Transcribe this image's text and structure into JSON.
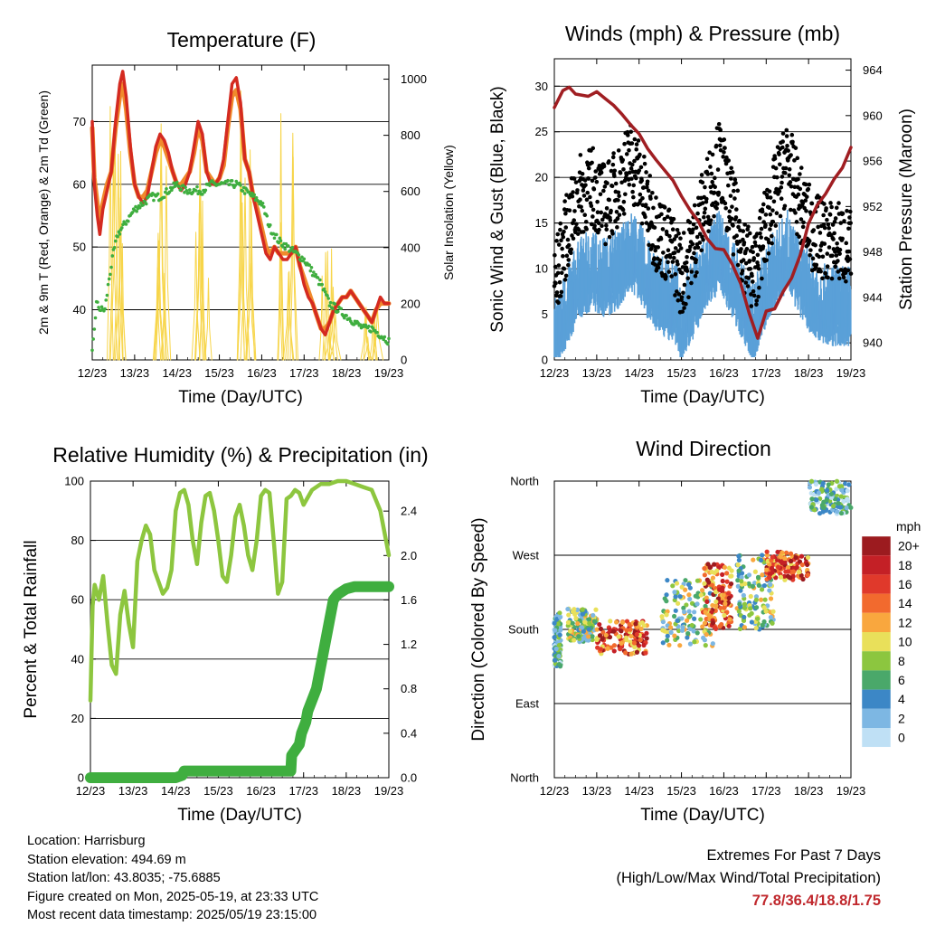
{
  "x_ticks": [
    "12/23",
    "13/23",
    "14/23",
    "15/23",
    "16/23",
    "17/23",
    "18/23",
    "19/23"
  ],
  "xlabel": "Time (Day/UTC)",
  "temperature": {
    "title": "Temperature (F)",
    "ylabel": "2m & 9m T (Red, Orange) & 2m Td (Green)",
    "y2label": "Solar Insolation (Yellow)",
    "yticks": [
      "40",
      "50",
      "60",
      "70"
    ],
    "y2ticks": [
      "0",
      "200",
      "400",
      "600",
      "800",
      "1000"
    ]
  },
  "winds": {
    "title": "Winds (mph) & Pressure (mb)",
    "ylabel": "Sonic Wind & Gust (Blue, Black)",
    "y2label": "Station Pressure (Maroon)",
    "yticks": [
      "0",
      "5",
      "10",
      "15",
      "20",
      "25",
      "30"
    ],
    "y2ticks": [
      "940",
      "944",
      "948",
      "952",
      "956",
      "960",
      "964"
    ]
  },
  "humidity": {
    "title": "Relative Humidity (%) & Precipitation (in)",
    "ylabel": "Percent & Total Rainfall",
    "yticks": [
      "0",
      "20",
      "40",
      "60",
      "80",
      "100"
    ],
    "y2ticks": [
      "0.0",
      "0.4",
      "0.8",
      "1.2",
      "1.6",
      "2.0",
      "2.4"
    ]
  },
  "direction": {
    "title": "Wind Direction",
    "ylabel": "Direction (Colored By Speed)",
    "yticks": [
      "North",
      "East",
      "South",
      "West",
      "North"
    ],
    "legend_title": "mph",
    "legend_labels": [
      "20+",
      "18",
      "16",
      "14",
      "12",
      "10",
      "8",
      "6",
      "4",
      "2",
      "0"
    ],
    "legend_colors": [
      "#9c1b1f",
      "#c42026",
      "#e0392b",
      "#f26a2e",
      "#f9a73e",
      "#e9e05a",
      "#8cc63f",
      "#4aa86a",
      "#3c87c6",
      "#7db7e3",
      "#bfe0f5"
    ]
  },
  "info": {
    "location": "Location: Harrisburg",
    "elevation": "Station elevation: 494.69 m",
    "latlon": "Station lat/lon: 43.8035; -75.6885",
    "created": "Figure created on Mon, 2025-05-19, at 23:33 UTC",
    "recent": "Most recent data timestamp: 2025/05/19 23:15:00"
  },
  "extremes": {
    "line1": "Extremes For Past 7 Days",
    "line2": "(High/Low/Max Wind/Total Precipitation)",
    "values": "77.8/36.4/18.8/1.75"
  },
  "chart_data": [
    {
      "type": "line",
      "x_days": [
        12,
        13,
        14,
        15,
        16,
        17,
        18,
        19
      ],
      "ylim": [
        32,
        79
      ],
      "y2lim": [
        0,
        1050
      ],
      "series": [
        {
          "color": "#d42a20",
          "x": [
            12.0,
            12.05,
            12.12,
            12.18,
            12.25,
            12.35,
            12.45,
            12.55,
            12.65,
            12.72,
            12.8,
            12.9,
            13.0,
            13.1,
            13.2,
            13.3,
            13.4,
            13.5,
            13.6,
            13.7,
            13.8,
            13.9,
            14.0,
            14.1,
            14.2,
            14.3,
            14.4,
            14.5,
            14.6,
            14.7,
            14.8,
            14.9,
            15.0,
            15.1,
            15.2,
            15.3,
            15.4,
            15.5,
            15.6,
            15.7,
            15.8,
            15.9,
            16.0,
            16.1,
            16.2,
            16.3,
            16.4,
            16.5,
            16.6,
            16.7,
            16.8,
            16.9,
            17.0,
            17.1,
            17.2,
            17.3,
            17.4,
            17.5,
            17.6,
            17.7,
            17.8,
            17.9,
            18.0,
            18.1,
            18.2,
            18.3,
            18.4,
            18.5,
            18.6,
            18.7,
            18.8,
            18.9,
            19.0
          ],
          "y": [
            70,
            60,
            55,
            52,
            56,
            59,
            62,
            70,
            76,
            78,
            74,
            66,
            60,
            58,
            57,
            58,
            62,
            66,
            68,
            67,
            65,
            62,
            60,
            59,
            60,
            62,
            66,
            70,
            68,
            62,
            60,
            60,
            61,
            64,
            70,
            76,
            77,
            73,
            64,
            62,
            58,
            55,
            52,
            49,
            48,
            50,
            49,
            48,
            48,
            49,
            50,
            47,
            44,
            42,
            41,
            39,
            37,
            36,
            38,
            40,
            41,
            42,
            42,
            43,
            42,
            41,
            40,
            39,
            38,
            40,
            42,
            41,
            41
          ]
        },
        {
          "color": "#f08a2c",
          "x": [
            12.0,
            12.05,
            12.12,
            12.18,
            12.25,
            12.35,
            12.45,
            12.55,
            12.65,
            12.72,
            12.8,
            12.9,
            13.0,
            13.1,
            13.2,
            13.3,
            13.4,
            13.5,
            13.6,
            13.7,
            13.8,
            13.9,
            14.0,
            14.1,
            14.2,
            14.3,
            14.4,
            14.5,
            14.6,
            14.7,
            14.8,
            14.9,
            15.0,
            15.1,
            15.2,
            15.3,
            15.4,
            15.5,
            15.6,
            15.7,
            15.8,
            15.9,
            16.0,
            16.1,
            16.2,
            16.3,
            16.4,
            16.5,
            16.6,
            16.7,
            16.8,
            16.9,
            17.0,
            17.1,
            17.2,
            17.3,
            17.4,
            17.5,
            17.6,
            17.7,
            17.8,
            17.9,
            18.0,
            18.1,
            18.2,
            18.3,
            18.4,
            18.5,
            18.6,
            18.7,
            18.8,
            18.9,
            19.0
          ],
          "y": [
            69,
            61,
            57,
            54,
            57,
            60,
            62,
            69,
            74,
            76,
            72,
            65,
            60,
            58,
            58,
            59,
            62,
            65,
            67,
            66,
            64,
            62,
            60,
            60,
            61,
            62,
            65,
            69,
            67,
            62,
            61,
            60,
            61,
            63,
            69,
            74,
            75,
            72,
            64,
            62,
            58,
            56,
            53,
            50,
            49,
            50,
            49,
            49,
            49,
            49,
            50,
            47,
            45,
            43,
            41,
            39,
            37,
            37,
            38,
            40,
            41,
            42,
            42,
            43,
            42,
            41,
            40,
            39,
            38,
            40,
            41,
            41,
            41
          ]
        },
        {
          "color": "#3fae3f",
          "x": [
            12.0,
            12.1,
            12.2,
            12.3,
            12.4,
            12.5,
            12.6,
            12.7,
            12.8,
            12.9,
            13.0,
            13.2,
            13.4,
            13.6,
            13.8,
            14.0,
            14.2,
            14.4,
            14.6,
            14.8,
            15.0,
            15.2,
            15.4,
            15.6,
            15.8,
            16.0,
            16.2,
            16.4,
            16.6,
            16.8,
            17.0,
            17.2,
            17.4,
            17.6,
            17.8,
            18.0,
            18.2,
            18.4,
            18.6,
            18.8,
            19.0
          ],
          "y": [
            33,
            41,
            40,
            40,
            45,
            49,
            52,
            53,
            54,
            55,
            56,
            57,
            58,
            58,
            59,
            60,
            59,
            59,
            59,
            60,
            60,
            60,
            60,
            59,
            58,
            57,
            53,
            51,
            50,
            49,
            48,
            46,
            44,
            41,
            40,
            39,
            38,
            37,
            37,
            36,
            35
          ]
        }
      ],
      "insolation_peaks": [
        {
          "x": 12.6,
          "y": 960
        },
        {
          "x": 13.6,
          "y": 900
        },
        {
          "x": 14.6,
          "y": 1000
        },
        {
          "x": 15.6,
          "y": 1030
        },
        {
          "x": 16.6,
          "y": 880
        },
        {
          "x": 17.6,
          "y": 420
        },
        {
          "x": 18.6,
          "y": 200
        }
      ]
    },
    {
      "type": "scatter",
      "ylim": [
        0,
        33
      ],
      "y2lim": [
        938.5,
        965
      ],
      "wind_mean_profile": [
        [
          12.0,
          3
        ],
        [
          12.3,
          7
        ],
        [
          12.6,
          10
        ],
        [
          12.9,
          11
        ],
        [
          13.2,
          10
        ],
        [
          13.5,
          11
        ],
        [
          13.8,
          13
        ],
        [
          14.0,
          12
        ],
        [
          14.3,
          9
        ],
        [
          14.6,
          8
        ],
        [
          14.9,
          7
        ],
        [
          15.0,
          5
        ],
        [
          15.3,
          8
        ],
        [
          15.6,
          11
        ],
        [
          15.9,
          13
        ],
        [
          16.1,
          11
        ],
        [
          16.4,
          8
        ],
        [
          16.7,
          5
        ],
        [
          16.9,
          8
        ],
        [
          17.2,
          11
        ],
        [
          17.5,
          13
        ],
        [
          17.8,
          10
        ],
        [
          18.1,
          8
        ],
        [
          18.4,
          7
        ],
        [
          18.7,
          7
        ],
        [
          19.0,
          7
        ]
      ],
      "gust_mean_profile": [
        [
          12.0,
          8
        ],
        [
          12.3,
          14
        ],
        [
          12.6,
          18
        ],
        [
          12.9,
          19
        ],
        [
          13.2,
          17
        ],
        [
          13.5,
          19
        ],
        [
          13.8,
          22
        ],
        [
          14.0,
          20
        ],
        [
          14.3,
          15
        ],
        [
          14.6,
          13
        ],
        [
          14.9,
          11
        ],
        [
          15.0,
          9
        ],
        [
          15.3,
          13
        ],
        [
          15.6,
          18
        ],
        [
          15.9,
          22
        ],
        [
          16.1,
          18
        ],
        [
          16.4,
          13
        ],
        [
          16.7,
          9
        ],
        [
          16.9,
          13
        ],
        [
          17.2,
          18
        ],
        [
          17.5,
          22
        ],
        [
          17.8,
          17
        ],
        [
          18.1,
          14
        ],
        [
          18.4,
          13
        ],
        [
          18.7,
          13
        ],
        [
          19.0,
          12
        ]
      ],
      "pressure": {
        "color": "#a01e22",
        "x": [
          12.0,
          12.2,
          12.35,
          12.5,
          12.8,
          13.0,
          13.2,
          13.4,
          13.6,
          13.8,
          14.0,
          14.2,
          14.4,
          14.6,
          14.8,
          15.0,
          15.2,
          15.4,
          15.6,
          15.8,
          16.0,
          16.2,
          16.4,
          16.6,
          16.8,
          17.0,
          17.2,
          17.4,
          17.6,
          17.8,
          18.0,
          18.2,
          18.4,
          18.6,
          18.8,
          19.0
        ],
        "y": [
          960.7,
          962.2,
          962.5,
          961.9,
          961.7,
          962.1,
          961.5,
          960.9,
          960.1,
          959.2,
          958.4,
          957.1,
          956.1,
          955.2,
          954.3,
          952.9,
          951.7,
          950.7,
          949.2,
          948.3,
          948.2,
          946.9,
          945.2,
          942.6,
          940.4,
          942.8,
          943.0,
          944.5,
          945.7,
          947.7,
          950.5,
          952.1,
          953.1,
          954.4,
          955.4,
          957.2
        ]
      }
    },
    {
      "type": "line",
      "ylim": [
        0,
        100
      ],
      "y2lim": [
        0,
        2.67
      ],
      "series": [
        {
          "name": "",
          "color": "#8dc63f",
          "x": [
            12.0,
            12.05,
            12.1,
            12.2,
            12.3,
            12.4,
            12.5,
            12.6,
            12.7,
            12.8,
            12.9,
            13.0,
            13.1,
            13.2,
            13.3,
            13.4,
            13.5,
            13.6,
            13.7,
            13.8,
            13.9,
            14.0,
            14.1,
            14.2,
            14.3,
            14.4,
            14.5,
            14.6,
            14.7,
            14.8,
            14.9,
            15.0,
            15.1,
            15.2,
            15.3,
            15.4,
            15.5,
            15.6,
            15.7,
            15.8,
            15.9,
            16.0,
            16.1,
            16.2,
            16.3,
            16.4,
            16.5,
            16.6,
            16.7,
            16.8,
            16.9,
            17.0,
            17.2,
            17.4,
            17.6,
            17.8,
            18.0,
            18.2,
            18.4,
            18.6,
            18.8,
            19.0
          ],
          "y": [
            26,
            58,
            65,
            60,
            68,
            52,
            38,
            35,
            55,
            63,
            52,
            44,
            73,
            80,
            85,
            82,
            70,
            66,
            62,
            64,
            70,
            90,
            96,
            97,
            92,
            80,
            72,
            86,
            95,
            96,
            90,
            80,
            68,
            66,
            75,
            88,
            92,
            85,
            75,
            70,
            80,
            95,
            97,
            96,
            80,
            62,
            66,
            94,
            95,
            97,
            96,
            92,
            97,
            99,
            99,
            100,
            100,
            99,
            98,
            97,
            90,
            75
          ]
        },
        {
          "name": "",
          "color": "#3fae3f",
          "x": [
            12.0,
            13.0,
            14.0,
            14.15,
            14.2,
            15.0,
            16.0,
            16.7,
            16.72,
            16.9,
            16.95,
            17.05,
            17.1,
            17.3,
            17.4,
            17.5,
            17.6,
            17.7,
            17.8,
            18.0,
            18.2,
            18.5,
            19.0
          ],
          "y": [
            0,
            0,
            0,
            0.02,
            0.06,
            0.06,
            0.06,
            0.06,
            0.2,
            0.3,
            0.4,
            0.5,
            0.6,
            0.8,
            1.0,
            1.2,
            1.4,
            1.6,
            1.65,
            1.7,
            1.72,
            1.72,
            1.72
          ]
        }
      ]
    },
    {
      "type": "scatter",
      "y_directions": [
        "North",
        "East",
        "South",
        "West",
        "North"
      ],
      "clusters": [
        {
          "x": [
            12.0,
            12.15
          ],
          "y": [
            135,
            200
          ],
          "speed": "low"
        },
        {
          "x": [
            12.3,
            13.0
          ],
          "y": [
            165,
            205
          ],
          "speed": "mid"
        },
        {
          "x": [
            13.0,
            14.2
          ],
          "y": [
            150,
            190
          ],
          "speed": "high"
        },
        {
          "x": [
            14.5,
            15.8
          ],
          "y": [
            160,
            240
          ],
          "speed": "mid"
        },
        {
          "x": [
            15.5,
            16.2
          ],
          "y": [
            180,
            260
          ],
          "speed": "high"
        },
        {
          "x": [
            16.3,
            17.2
          ],
          "y": [
            180,
            270
          ],
          "speed": "mid"
        },
        {
          "x": [
            17.0,
            18.0
          ],
          "y": [
            240,
            275
          ],
          "speed": "high"
        },
        {
          "x": [
            18.0,
            19.0
          ],
          "y": [
            320,
            360
          ],
          "speed": "low"
        }
      ]
    }
  ]
}
